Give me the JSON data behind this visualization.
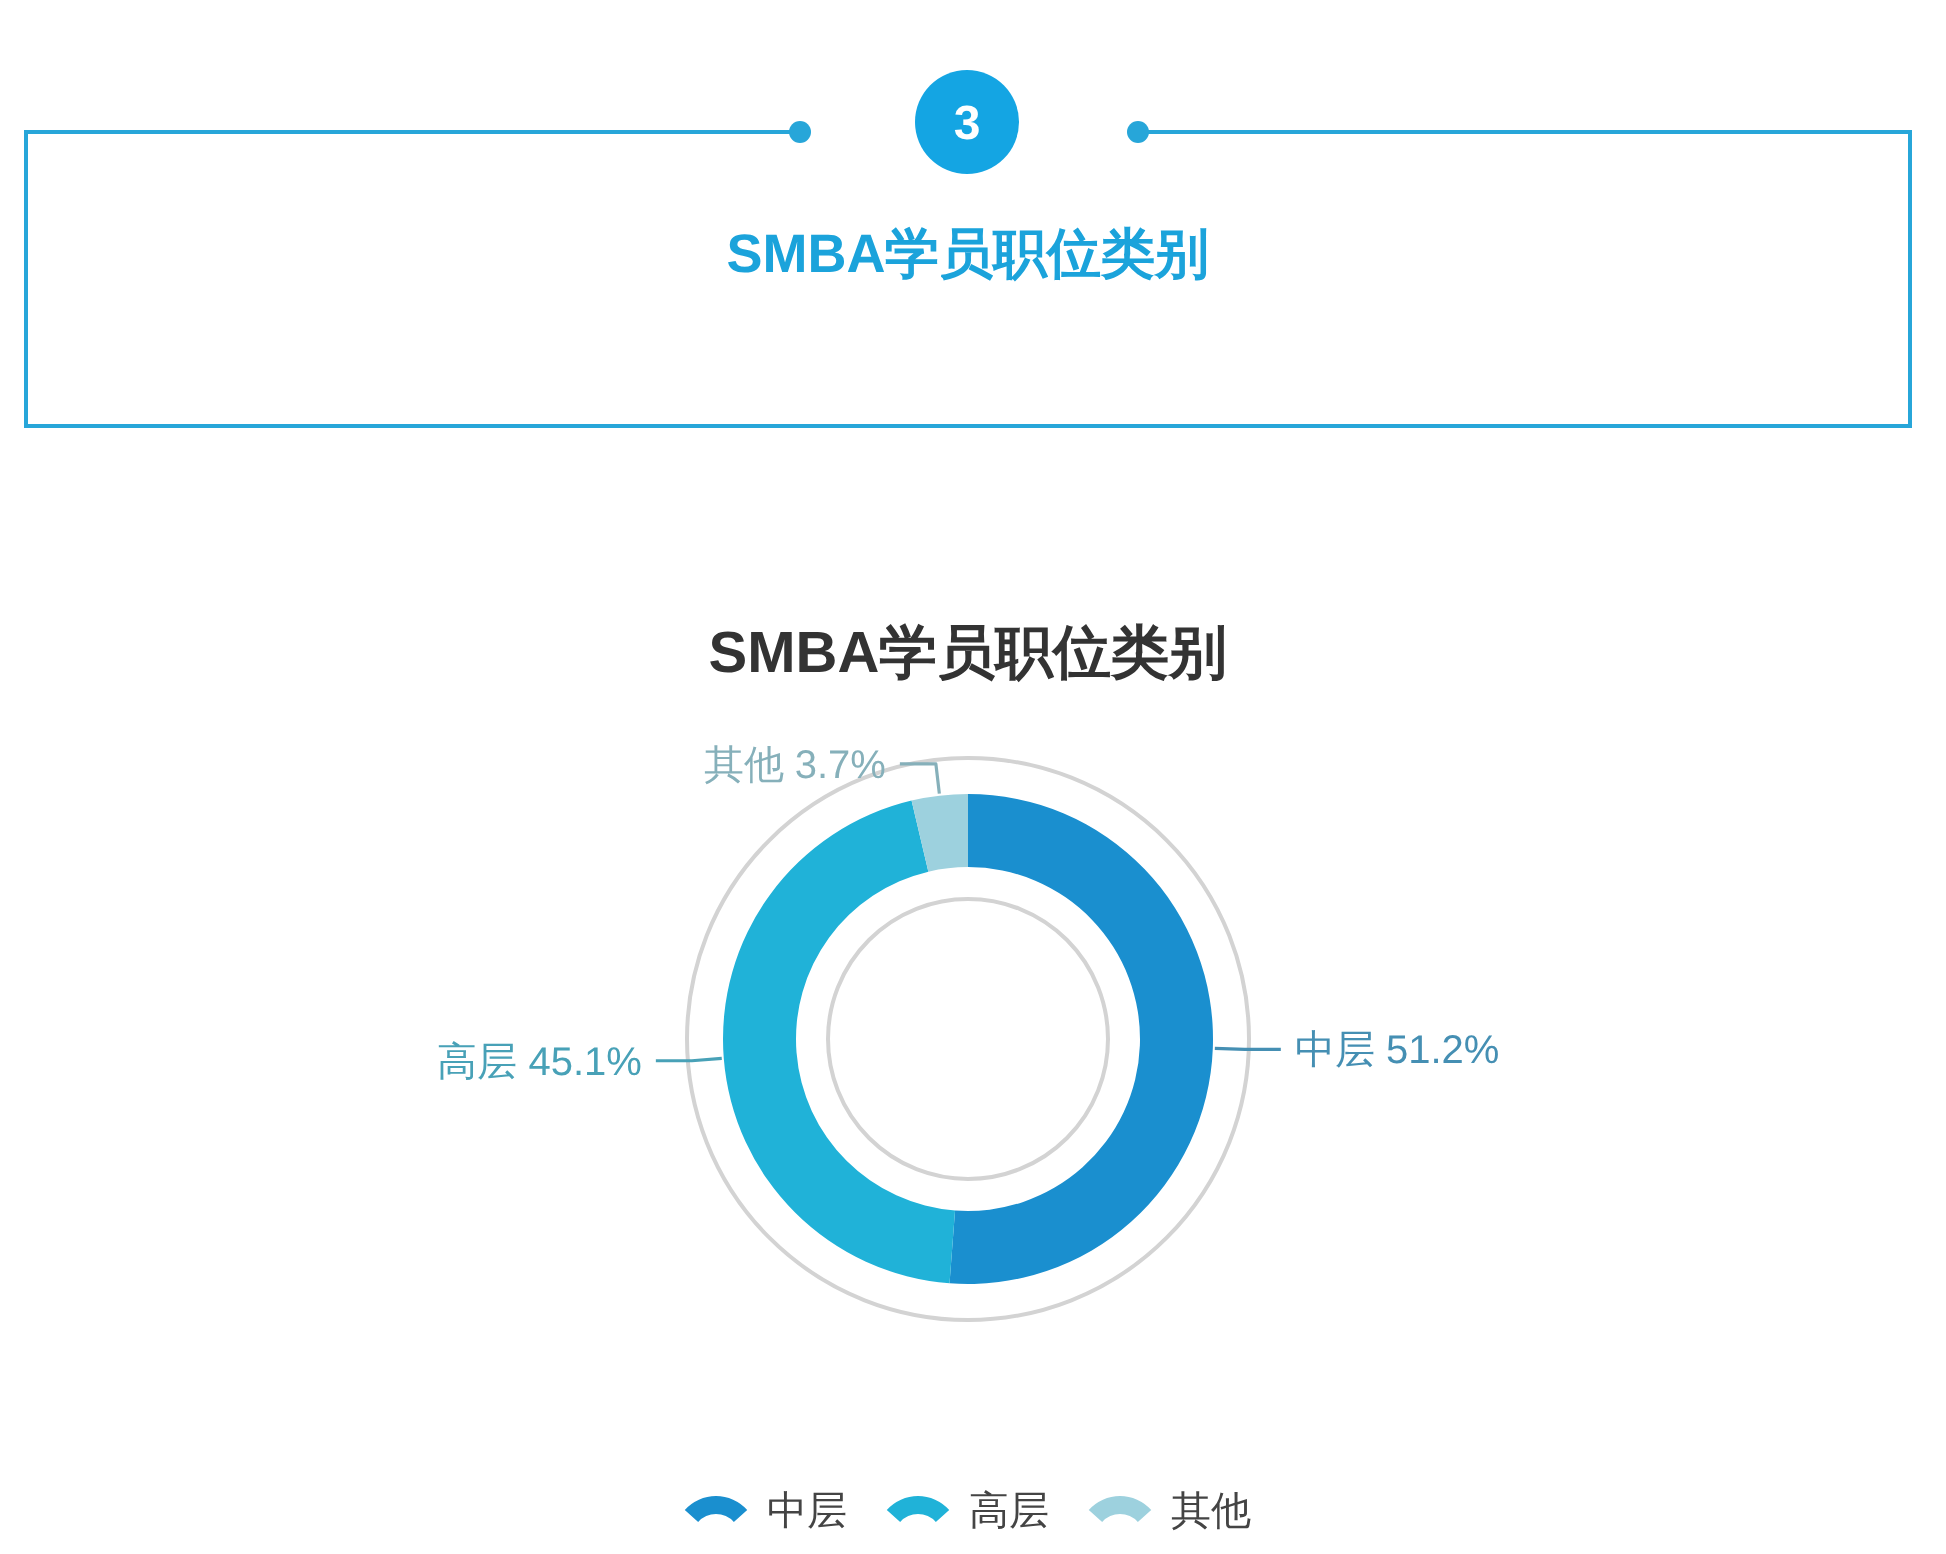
{
  "chart_data": [
    {
      "type": "other",
      "title": "SMBA学员职位类别",
      "annotations": [
        "3"
      ]
    },
    {
      "type": "donut",
      "title": "SMBA学员职位类别",
      "categories": [
        "中层",
        "高层",
        "其他"
      ],
      "values": [
        51.2,
        45.1,
        3.7
      ],
      "colors": [
        "#1a8fcf",
        "#20b2d8",
        "#9dd1de"
      ],
      "value_labels": [
        "中层 51.2%",
        "高层 45.1%",
        "其他 3.7%"
      ],
      "legend": "bottom"
    }
  ]
}
